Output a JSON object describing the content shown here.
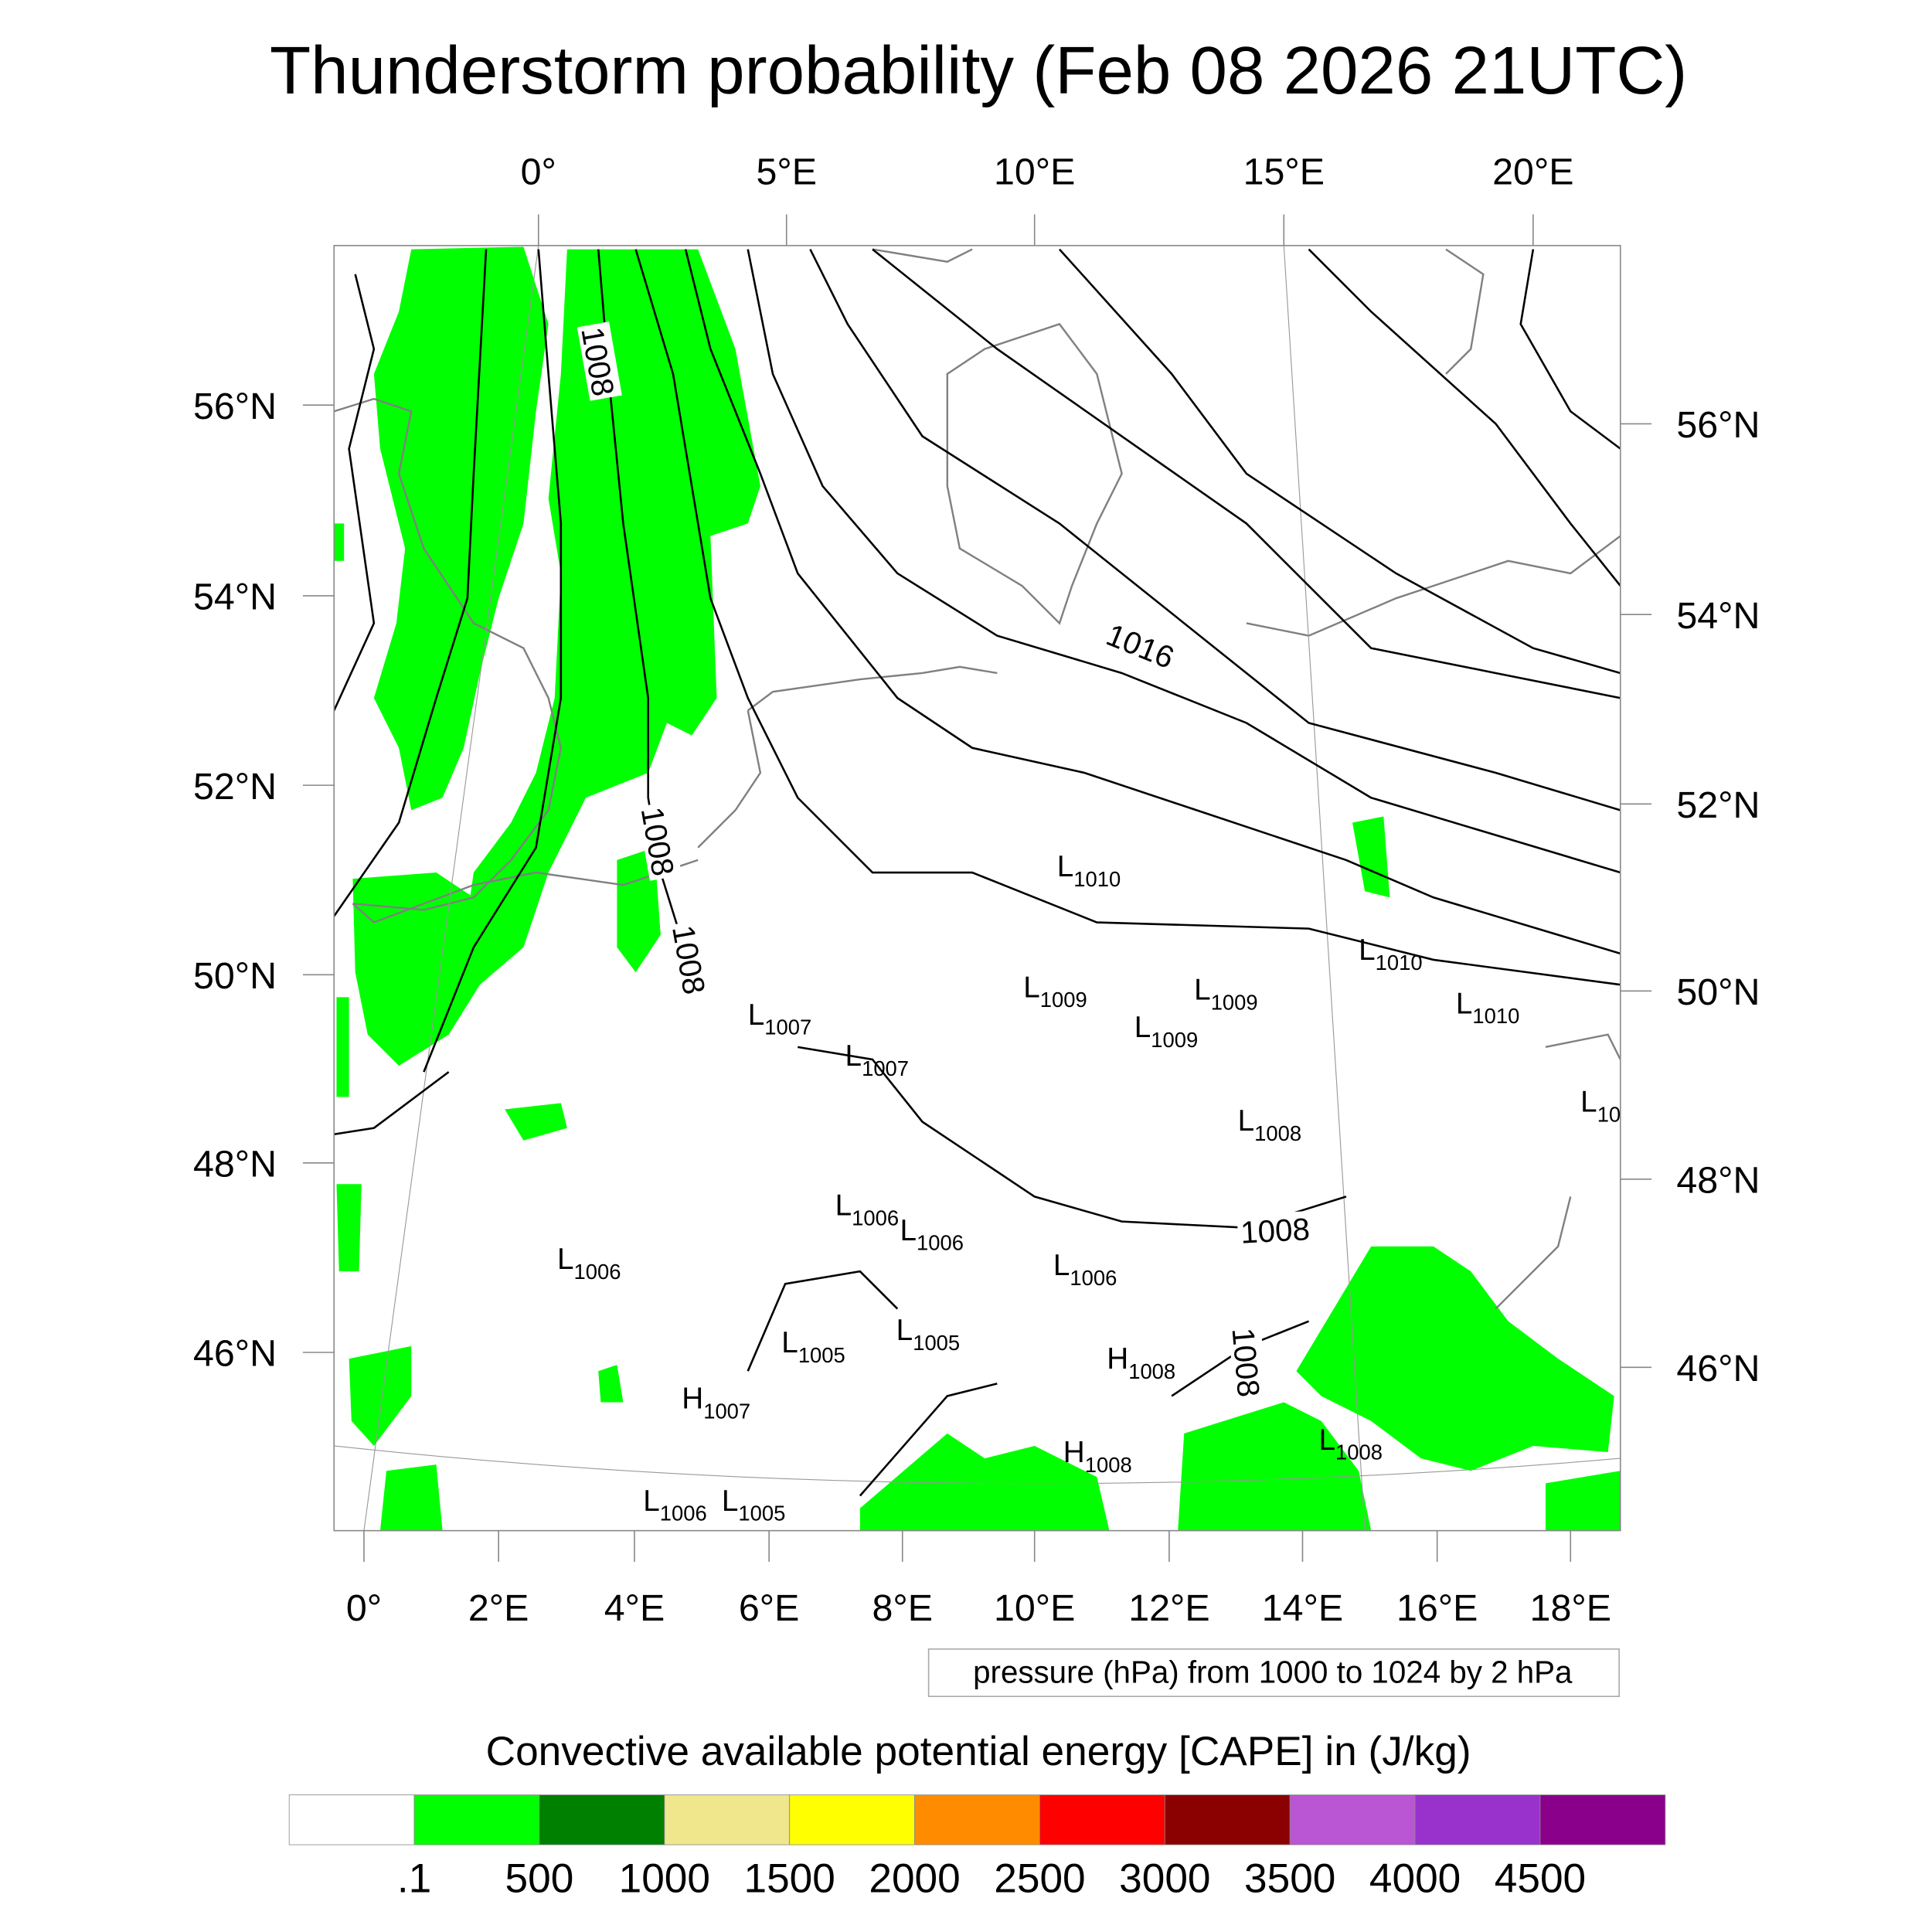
{
  "chart_data": {
    "type": "heatmap",
    "title": "Thunderstorm probability (Feb 08 2026 21UTC)",
    "top_lon_ticks": [
      "0°",
      "5°E",
      "10°E",
      "15°E",
      "20°E"
    ],
    "bottom_lon_ticks": [
      "0°",
      "2°E",
      "4°E",
      "6°E",
      "8°E",
      "10°E",
      "12°E",
      "14°E",
      "16°E",
      "18°E"
    ],
    "left_lat_ticks": [
      "56°N",
      "54°N",
      "52°N",
      "50°N",
      "48°N",
      "46°N"
    ],
    "right_lat_ticks": [
      "56°N",
      "54°N",
      "52°N",
      "50°N",
      "48°N",
      "46°N"
    ],
    "contour_info": "pressure (hPa) from 1000 to 1024 by 2 hPa",
    "contour_labels": [
      "1008",
      "1008",
      "1008",
      "1016",
      "1008",
      "1008"
    ],
    "pressure_centers": [
      {
        "type": "L",
        "value": "1010"
      },
      {
        "type": "L",
        "value": "1010"
      },
      {
        "type": "L",
        "value": "1010"
      },
      {
        "type": "L",
        "value": "1009"
      },
      {
        "type": "L",
        "value": "1009"
      },
      {
        "type": "L",
        "value": "1009"
      },
      {
        "type": "L",
        "value": "1007"
      },
      {
        "type": "L",
        "value": "1007"
      },
      {
        "type": "L",
        "value": "1008"
      },
      {
        "type": "L",
        "value": "10"
      },
      {
        "type": "L",
        "value": "1006"
      },
      {
        "type": "L",
        "value": "1006"
      },
      {
        "type": "L",
        "value": "1006"
      },
      {
        "type": "L",
        "value": "1006"
      },
      {
        "type": "L",
        "value": "1005"
      },
      {
        "type": "L",
        "value": "1005"
      },
      {
        "type": "H",
        "value": "1008"
      },
      {
        "type": "H",
        "value": "1007"
      },
      {
        "type": "H",
        "value": "1008"
      },
      {
        "type": "L",
        "value": "1008"
      },
      {
        "type": "L",
        "value": "1006"
      },
      {
        "type": "L",
        "value": "1005"
      }
    ],
    "colorbar": {
      "title": "Convective available potential energy [CAPE] in (J/kg)",
      "levels": [
        ".1",
        "500",
        "1000",
        "1500",
        "2000",
        "2500",
        "3000",
        "3500",
        "4000",
        "4500"
      ],
      "colors": [
        "#ffffff",
        "#00ff00",
        "#008000",
        "#f0e68c",
        "#ffff00",
        "#ff8c00",
        "#ff0000",
        "#8b0000",
        "#ba55d3",
        "#9932cc",
        "#8b008b"
      ]
    },
    "fill_color": "#00ff00",
    "coast_color": "#808080"
  }
}
